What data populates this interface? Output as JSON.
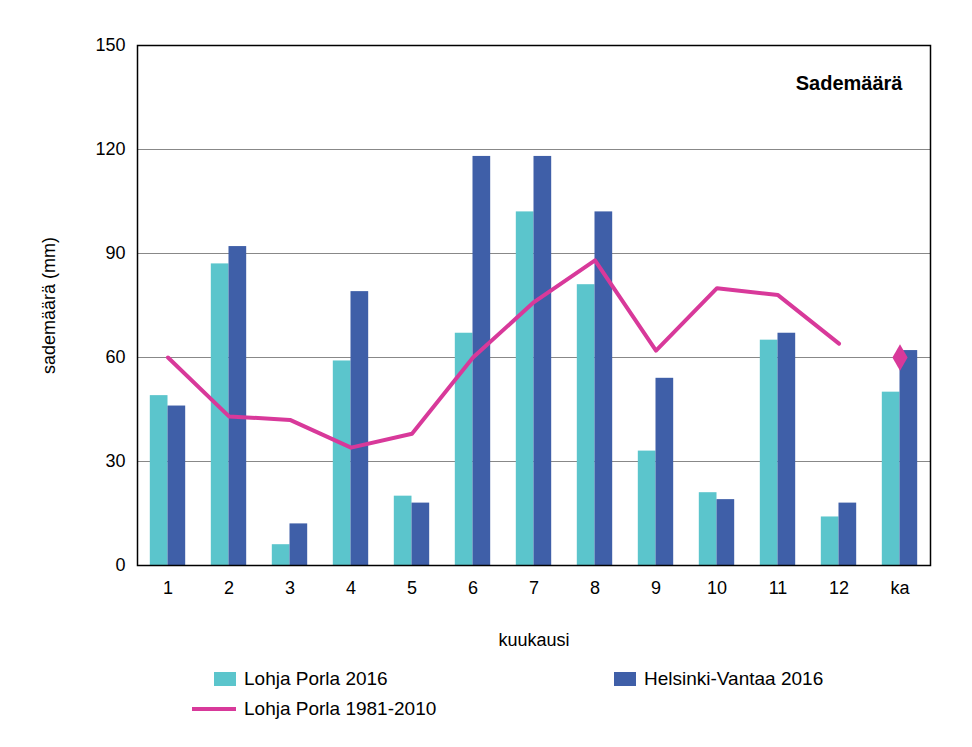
{
  "chart_data": {
    "type": "bar",
    "title": "Sademäärä",
    "x_label": "kuukausi",
    "y_label": "sademäärä (mm)",
    "categories": [
      "1",
      "2",
      "3",
      "4",
      "5",
      "6",
      "7",
      "8",
      "9",
      "10",
      "11",
      "12",
      "ka"
    ],
    "series": [
      {
        "name": "Lohja Porla 2016",
        "type": "bar",
        "color": "#5bc5cc",
        "values": [
          49,
          87,
          6,
          59,
          20,
          67,
          102,
          81,
          33,
          21,
          65,
          14,
          50
        ]
      },
      {
        "name": "Helsinki-Vantaa 2016",
        "type": "bar",
        "color": "#3f5fa8",
        "values": [
          46,
          92,
          12,
          79,
          18,
          118,
          118,
          102,
          54,
          19,
          67,
          18,
          62
        ]
      },
      {
        "name": "Lohja Porla 1981-2010",
        "type": "line",
        "color": "#d8399a",
        "values": [
          60,
          43,
          42,
          34,
          38,
          60,
          76,
          88,
          62,
          80,
          78,
          64,
          null
        ]
      },
      {
        "name": "Lohja Porla 1981-2010",
        "type": "scatter",
        "marker": "diamond",
        "color": "#d8399a",
        "values": [
          null,
          null,
          null,
          null,
          null,
          null,
          null,
          null,
          null,
          null,
          null,
          null,
          60
        ]
      }
    ],
    "ylim": [
      0,
      150
    ],
    "yticks": [
      0,
      30,
      60,
      90,
      120,
      150
    ],
    "grid": true,
    "legend": "bottom"
  }
}
